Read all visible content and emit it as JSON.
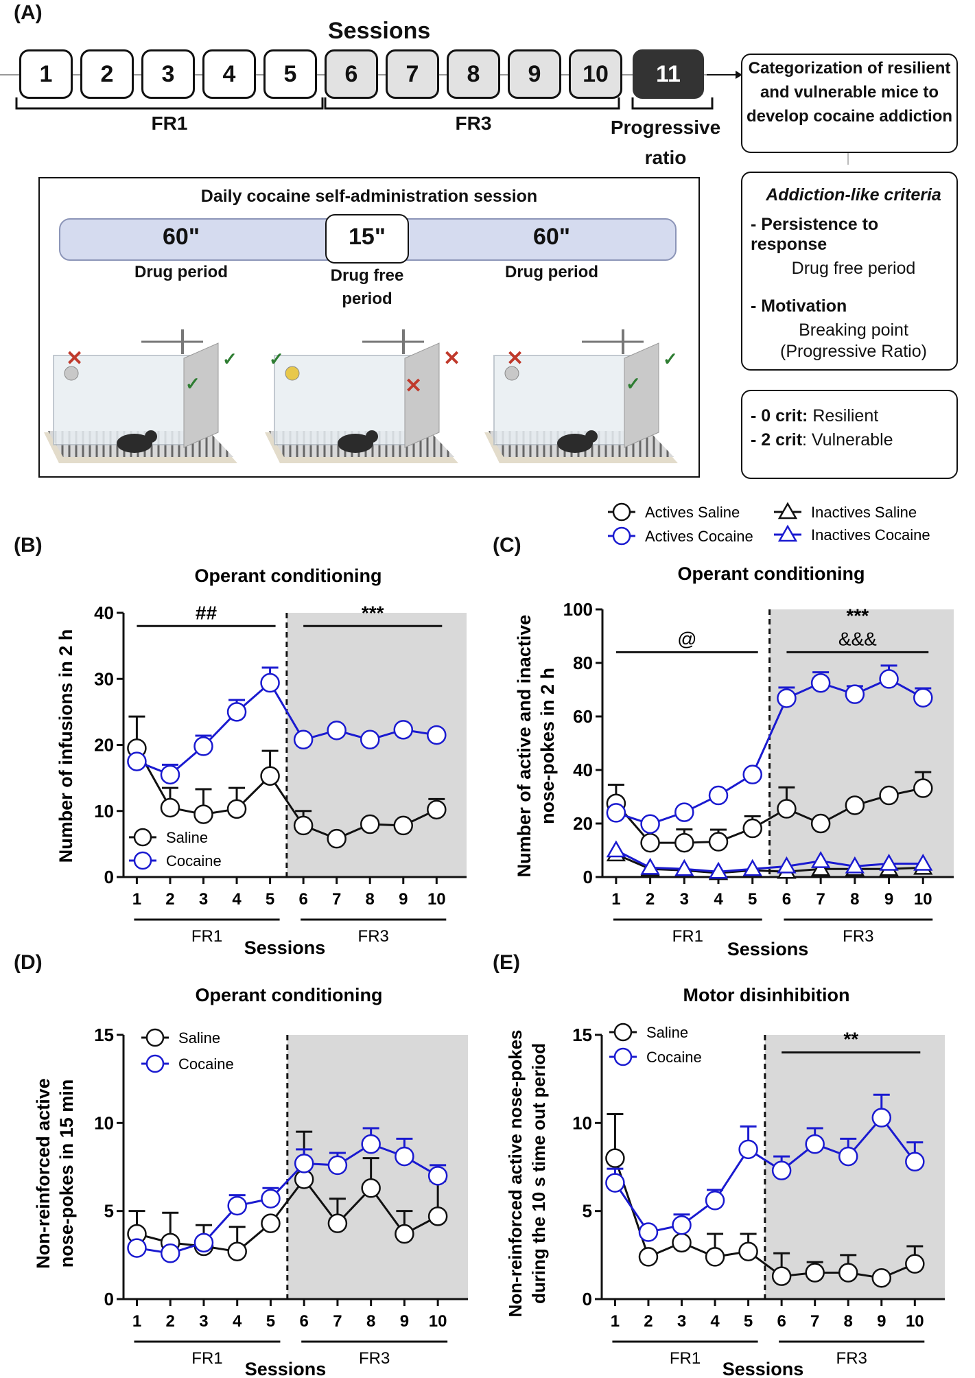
{
  "panel_a": {
    "letter": "(A)",
    "sessions_title": "Sessions",
    "sessions": [
      "1",
      "2",
      "3",
      "4",
      "5",
      "6",
      "7",
      "8",
      "9",
      "10",
      "11"
    ],
    "phase_labels": [
      "FR1",
      "FR3",
      "Progressive ratio"
    ],
    "categorization": "Categorization of resilient and vulnerable mice to develop cocaine addiction",
    "daily_title": "Daily cocaine self-administration session",
    "periods": [
      {
        "value": "60\"",
        "label": "Drug period"
      },
      {
        "value": "15\"",
        "label": "Drug free period"
      },
      {
        "value": "60\"",
        "label": "Drug period"
      }
    ],
    "criteria": {
      "title": "Addiction-like criteria",
      "persistence": "- Persistence to response",
      "persistence_sub": "Drug free period",
      "motivation": "- Motivation",
      "motivation_sub1": "Breaking point",
      "motivation_sub2": "(Progressive Ratio)"
    },
    "outcome": {
      "resilient_crit": "- 0 crit:",
      "resilient": "Resilient",
      "vulnerable_crit": "- 2 crit",
      "vulnerable": ": Vulnerable"
    },
    "colors": {
      "box_fr1": "#ffffff",
      "box_fr3": "#e2e2e2",
      "box_pr": "#333333",
      "bar": "#d5dbef",
      "cross": "#c0392b",
      "check": "#2e7d32"
    }
  },
  "chart_data": [
    {
      "panel": "(B)",
      "type": "line",
      "title": "Operant conditioning",
      "xlabel": "Sessions",
      "ylabel": "Number of infusions in 2 h",
      "x": [
        1,
        2,
        3,
        4,
        5,
        6,
        7,
        8,
        9,
        10
      ],
      "ylim": [
        0,
        40
      ],
      "yticks": [
        0,
        10,
        20,
        30,
        40
      ],
      "phases": [
        {
          "label": "FR1",
          "from": 1,
          "to": 5
        },
        {
          "label": "FR3",
          "from": 6,
          "to": 10
        }
      ],
      "shaded_from": 5.5,
      "series": [
        {
          "name": "Saline",
          "marker": "circle",
          "color": "#111111",
          "values": [
            19.5,
            10.5,
            9.5,
            10.3,
            15.3,
            7.8,
            5.8,
            8.0,
            7.8,
            10.2
          ],
          "err": [
            4.8,
            3.0,
            3.8,
            3.2,
            3.8,
            2.2,
            0,
            0,
            0,
            1.6
          ]
        },
        {
          "name": "Cocaine",
          "marker": "circle",
          "color": "#1a1ad0",
          "values": [
            17.5,
            15.5,
            19.8,
            25.0,
            29.4,
            20.8,
            22.2,
            20.8,
            22.3,
            21.5
          ],
          "err": [
            0,
            1.5,
            1.6,
            1.8,
            2.3,
            0,
            0,
            0,
            0,
            0
          ]
        }
      ],
      "annotations": [
        {
          "text": "##",
          "from": 1,
          "to": 5,
          "y": 38
        },
        {
          "text": "***",
          "from": 6,
          "to": 10,
          "y": 38
        }
      ]
    },
    {
      "panel": "(C)",
      "type": "line",
      "title": "Operant conditioning",
      "xlabel": "Sessions",
      "ylabel": "Number of active and inactive nose-pokes in 2 h",
      "x": [
        1,
        2,
        3,
        4,
        5,
        6,
        7,
        8,
        9,
        10
      ],
      "ylim": [
        0,
        100
      ],
      "yticks": [
        0,
        20,
        40,
        60,
        80,
        100
      ],
      "phases": [
        {
          "label": "FR1",
          "from": 1,
          "to": 5
        },
        {
          "label": "FR3",
          "from": 6,
          "to": 10
        }
      ],
      "shaded_from": 5.5,
      "series": [
        {
          "name": "Actives Saline",
          "marker": "circle",
          "color": "#111111",
          "values": [
            27.5,
            12.8,
            12.8,
            13.2,
            18.2,
            25.5,
            20.0,
            26.8,
            30.5,
            33.2
          ],
          "err": [
            7,
            0,
            5,
            4.5,
            4.5,
            8,
            0,
            0,
            0,
            6
          ]
        },
        {
          "name": "Actives Cocaine",
          "marker": "circle",
          "color": "#1a1ad0",
          "values": [
            24.0,
            19.8,
            24.2,
            30.5,
            38.3,
            66.8,
            72.5,
            68.3,
            74.0,
            67.0
          ],
          "err": [
            0,
            0,
            0,
            0,
            0,
            4,
            4,
            3,
            5,
            3.5
          ]
        },
        {
          "name": "Inactives Saline",
          "marker": "triangle",
          "color": "#111111",
          "values": [
            8.5,
            3.0,
            2.5,
            1.5,
            2.5,
            2.0,
            3.0,
            3.0,
            3.0,
            3.5
          ],
          "err": [
            0,
            0,
            0,
            0,
            0,
            0,
            0,
            0,
            0,
            0
          ]
        },
        {
          "name": "Inactives Cocaine",
          "marker": "triangle",
          "color": "#1a1ad0",
          "values": [
            10.0,
            3.5,
            3.0,
            2.0,
            3.0,
            4.0,
            6.0,
            4.0,
            5.0,
            5.0
          ],
          "err": [
            0,
            0,
            0,
            0,
            0,
            0,
            0,
            0,
            0,
            0
          ]
        }
      ],
      "annotations": [
        {
          "text": "@",
          "from": 1,
          "to": 5,
          "y": 84
        },
        {
          "text": "***",
          "from": 6,
          "to": 10,
          "y": 84
        },
        {
          "text": "&&&",
          "from": 6,
          "to": 10,
          "y": 84,
          "offset": 1
        }
      ]
    },
    {
      "panel": "(D)",
      "type": "line",
      "title": "Operant conditioning",
      "xlabel": "Sessions",
      "ylabel": "Non-reinforced active nose-pokes in 15 min",
      "x": [
        1,
        2,
        3,
        4,
        5,
        6,
        7,
        8,
        9,
        10
      ],
      "ylim": [
        0,
        15
      ],
      "yticks": [
        0,
        5,
        10,
        15
      ],
      "phases": [
        {
          "label": "FR1",
          "from": 1,
          "to": 5
        },
        {
          "label": "FR3",
          "from": 6,
          "to": 10
        }
      ],
      "shaded_from": 5.5,
      "series": [
        {
          "name": "Saline",
          "marker": "circle",
          "color": "#111111",
          "values": [
            3.7,
            3.2,
            3.0,
            2.7,
            4.3,
            6.8,
            4.3,
            6.3,
            3.7,
            4.7
          ],
          "err": [
            1.3,
            1.7,
            1.2,
            1.4,
            0,
            2.7,
            1.4,
            1.7,
            1.3,
            2.0
          ]
        },
        {
          "name": "Cocaine",
          "marker": "circle",
          "color": "#1a1ad0",
          "values": [
            2.9,
            2.6,
            3.2,
            5.3,
            5.7,
            7.7,
            7.6,
            8.8,
            8.1,
            7.0
          ],
          "err": [
            0,
            0,
            0,
            0.6,
            0.6,
            0.8,
            0.7,
            0.9,
            1.0,
            0.6
          ]
        }
      ],
      "annotations": []
    },
    {
      "panel": "(E)",
      "type": "line",
      "title": "Motor disinhibition",
      "xlabel": "Sessions",
      "ylabel": "Non-reinforced active nose-pokes during the 10 s time out period",
      "x": [
        1,
        2,
        3,
        4,
        5,
        6,
        7,
        8,
        9,
        10
      ],
      "ylim": [
        0,
        15
      ],
      "yticks": [
        0,
        5,
        10,
        15
      ],
      "phases": [
        {
          "label": "FR1",
          "from": 1,
          "to": 5
        },
        {
          "label": "FR3",
          "from": 6,
          "to": 10
        }
      ],
      "shaded_from": 5.5,
      "series": [
        {
          "name": "Saline",
          "marker": "circle",
          "color": "#111111",
          "values": [
            8.0,
            2.4,
            3.2,
            2.4,
            2.7,
            1.3,
            1.5,
            1.5,
            1.2,
            2.0
          ],
          "err": [
            2.5,
            0,
            0,
            1.3,
            1.0,
            1.3,
            0.6,
            1.0,
            0,
            1.0
          ]
        },
        {
          "name": "Cocaine",
          "marker": "circle",
          "color": "#1a1ad0",
          "values": [
            6.6,
            3.8,
            4.2,
            5.6,
            8.5,
            7.3,
            8.8,
            8.1,
            10.3,
            7.8
          ],
          "err": [
            0.8,
            0,
            0.6,
            0.6,
            1.3,
            0.8,
            0.9,
            1.0,
            1.3,
            1.1
          ]
        }
      ],
      "annotations": [
        {
          "text": "**",
          "from": 6,
          "to": 10,
          "y": 14
        }
      ]
    }
  ]
}
